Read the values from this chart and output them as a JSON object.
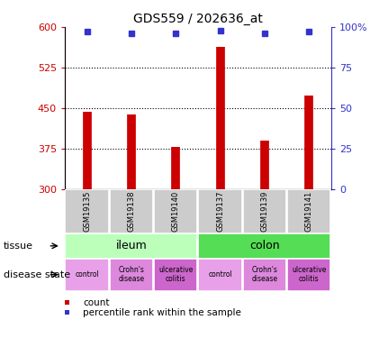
{
  "title": "GDS559 / 202636_at",
  "samples": [
    "GSM19135",
    "GSM19138",
    "GSM19140",
    "GSM19137",
    "GSM19139",
    "GSM19141"
  ],
  "bar_values": [
    443,
    438,
    378,
    563,
    390,
    473
  ],
  "percentile_values": [
    97,
    96,
    96,
    98,
    96,
    97
  ],
  "bar_color": "#cc0000",
  "percentile_color": "#3333cc",
  "ylim_left": [
    300,
    600
  ],
  "ylim_right": [
    0,
    100
  ],
  "yticks_left": [
    300,
    375,
    450,
    525,
    600
  ],
  "yticks_right": [
    0,
    25,
    50,
    75,
    100
  ],
  "hlines": [
    375,
    450,
    525
  ],
  "tissue_colors": [
    "#bbffbb",
    "#55dd55"
  ],
  "disease_colors_all": [
    "#e8a0e8",
    "#dd88dd",
    "#cc66cc",
    "#e8a0e8",
    "#dd88dd",
    "#cc66cc"
  ],
  "sample_bg_color": "#cccccc",
  "left_label_color": "#cc0000",
  "right_label_color": "#3333cc",
  "tissue_labels": [
    "ileum",
    "colon"
  ],
  "disease_labels": [
    "control",
    "Crohn's\ndisease",
    "ulcerative\ncolitis",
    "control",
    "Crohn's\ndisease",
    "ulcerative\ncolitis"
  ]
}
